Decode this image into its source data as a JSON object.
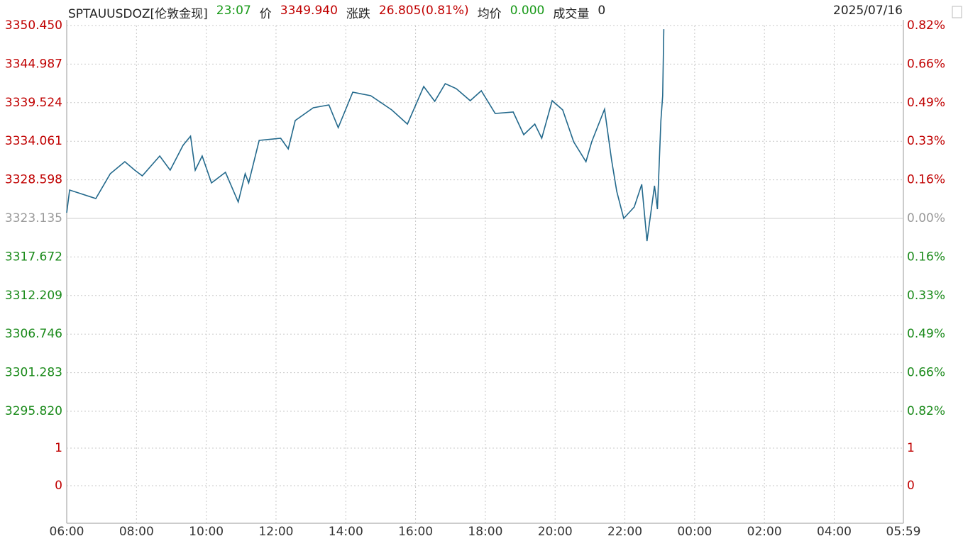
{
  "header": {
    "symbol": "SPTAUUSDOZ[伦敦金现]",
    "time": "23:07",
    "price_label": "价",
    "price": "3349.940",
    "change_label": "涨跌",
    "change": "26.805(0.81%)",
    "avg_label": "均价",
    "avg": "0.000",
    "volume_label": "成交量",
    "volume": "0",
    "date": "2025/07/16"
  },
  "chart_data": [
    {
      "type": "line",
      "grid": true,
      "x": [
        "06:00",
        "06:05",
        "06:20",
        "06:50",
        "07:15",
        "07:40",
        "07:57",
        "08:10",
        "08:40",
        "08:58",
        "09:20",
        "09:33",
        "09:41",
        "09:53",
        "10:09",
        "10:33",
        "10:55",
        "11:07",
        "11:13",
        "11:31",
        "12:08",
        "12:21",
        "12:33",
        "13:04",
        "13:31",
        "13:47",
        "14:12",
        "14:43",
        "15:19",
        "15:46",
        "16:14",
        "16:33",
        "16:51",
        "17:10",
        "17:34",
        "17:53",
        "18:17",
        "18:48",
        "19:06",
        "19:25",
        "19:37",
        "19:55",
        "20:13",
        "20:32",
        "20:53",
        "21:03",
        "21:25",
        "21:37",
        "21:46",
        "21:58",
        "22:16",
        "22:29",
        "22:38",
        "22:51",
        "22:56",
        "23:02",
        "23:05",
        "23:07"
      ],
      "series": [
        {
          "name": "SPTAUUSDOZ",
          "color": "#23698c",
          "values": [
            3323.94,
            3327.15,
            3326.75,
            3325.95,
            3329.46,
            3331.17,
            3329.96,
            3329.16,
            3331.97,
            3329.96,
            3333.48,
            3334.78,
            3329.96,
            3331.97,
            3328.16,
            3329.66,
            3325.45,
            3329.46,
            3328.16,
            3334.18,
            3334.48,
            3332.98,
            3336.99,
            3338.8,
            3339.2,
            3335.99,
            3341.01,
            3340.51,
            3338.5,
            3336.49,
            3341.81,
            3339.71,
            3342.22,
            3341.51,
            3339.81,
            3341.21,
            3338.0,
            3338.2,
            3334.98,
            3336.49,
            3334.48,
            3339.81,
            3338.5,
            3333.98,
            3331.17,
            3333.98,
            3338.6,
            3331.47,
            3326.95,
            3323.14,
            3324.74,
            3327.96,
            3319.92,
            3327.75,
            3324.44,
            3336.99,
            3340.5,
            3349.94
          ]
        }
      ],
      "xlim": [
        "06:00",
        "05:59"
      ],
      "xticks": [
        "06:00",
        "08:00",
        "10:00",
        "12:00",
        "14:00",
        "16:00",
        "18:00",
        "20:00",
        "22:00",
        "00:00",
        "02:00",
        "04:00",
        "05:59"
      ],
      "ylim": [
        3295.82,
        3350.45
      ],
      "yticks": [
        {
          "value": 3295.82,
          "label": "3295.820"
        },
        {
          "value": 3301.283,
          "label": "3301.283"
        },
        {
          "value": 3306.746,
          "label": "3306.746"
        },
        {
          "value": 3312.209,
          "label": "3312.209"
        },
        {
          "value": 3317.672,
          "label": "3317.672"
        },
        {
          "value": 3323.135,
          "label": "3323.135"
        },
        {
          "value": 3328.598,
          "label": "3328.598"
        },
        {
          "value": 3334.061,
          "label": "3334.061"
        },
        {
          "value": 3339.524,
          "label": "3339.524"
        },
        {
          "value": 3344.987,
          "label": "3344.987"
        },
        {
          "value": 3350.45,
          "label": "3350.450"
        }
      ],
      "y2lim": [
        -0.822,
        0.822
      ],
      "y2ticks": [
        {
          "value": -0.822,
          "label": "0.82%"
        },
        {
          "value": -0.658,
          "label": "0.66%"
        },
        {
          "value": -0.493,
          "label": "0.49%"
        },
        {
          "value": -0.329,
          "label": "0.33%"
        },
        {
          "value": -0.164,
          "label": "0.16%"
        },
        {
          "value": 0,
          "label": "0.00%"
        },
        {
          "value": 0.164,
          "label": "0.16%"
        },
        {
          "value": 0.329,
          "label": "0.33%"
        },
        {
          "value": 0.493,
          "label": "0.49%"
        },
        {
          "value": 0.658,
          "label": "0.66%"
        },
        {
          "value": 0.822,
          "label": "0.82%"
        }
      ]
    },
    {
      "type": "bar",
      "grid": true,
      "ylim": [
        -1,
        2
      ],
      "yticks": [
        0,
        1
      ]
    }
  ]
}
